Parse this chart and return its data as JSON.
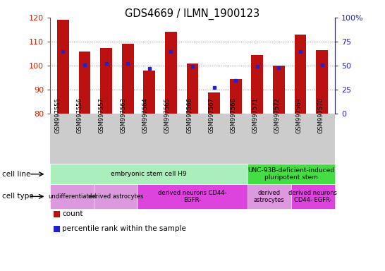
{
  "title": "GDS4669 / ILMN_1900123",
  "samples": [
    "GSM997555",
    "GSM997556",
    "GSM997557",
    "GSM997563",
    "GSM997564",
    "GSM997565",
    "GSM997566",
    "GSM997567",
    "GSM997568",
    "GSM997571",
    "GSM997572",
    "GSM997569",
    "GSM997570"
  ],
  "counts": [
    119,
    106,
    107.5,
    109,
    98,
    114,
    101,
    89,
    94.5,
    104.5,
    100,
    113,
    106.5
  ],
  "percentiles": [
    65,
    51,
    52,
    52,
    47,
    65,
    49,
    27,
    35,
    49,
    48,
    65,
    51
  ],
  "ylim_left": [
    80,
    120
  ],
  "ylim_right": [
    0,
    100
  ],
  "yticks_left": [
    80,
    90,
    100,
    110,
    120
  ],
  "yticks_right": [
    0,
    25,
    50,
    75,
    100
  ],
  "ytick_labels_right": [
    "0",
    "25",
    "50",
    "75",
    "100%"
  ],
  "bar_color": "#bb1111",
  "dot_color": "#2222cc",
  "bar_width": 0.55,
  "cell_line_groups": [
    {
      "label": "embryonic stem cell H9",
      "start": 0,
      "end": 8,
      "color": "#aaeebb"
    },
    {
      "label": "UNC-93B-deficient-induced\npluripotent stem",
      "start": 9,
      "end": 12,
      "color": "#44dd44"
    }
  ],
  "cell_type_groups": [
    {
      "label": "undifferentiated",
      "start": 0,
      "end": 1,
      "color": "#dd99dd"
    },
    {
      "label": "derived astrocytes",
      "start": 2,
      "end": 3,
      "color": "#dd99dd"
    },
    {
      "label": "derived neurons CD44-\nEGFR-",
      "start": 4,
      "end": 8,
      "color": "#dd44dd"
    },
    {
      "label": "derived\nastrocytes",
      "start": 9,
      "end": 10,
      "color": "#dd99dd"
    },
    {
      "label": "derived neurons\nCD44- EGFR-",
      "start": 11,
      "end": 12,
      "color": "#dd44dd"
    }
  ],
  "legend_items": [
    {
      "label": "count",
      "color": "#bb1111"
    },
    {
      "label": "percentile rank within the sample",
      "color": "#2222cc"
    }
  ],
  "left_axis_color": "#cc2200",
  "right_axis_color": "#2222cc",
  "grid_color": "#888888",
  "xtick_bg_color": "#cccccc",
  "cell_line_row_label": "cell line",
  "cell_type_row_label": "cell type"
}
